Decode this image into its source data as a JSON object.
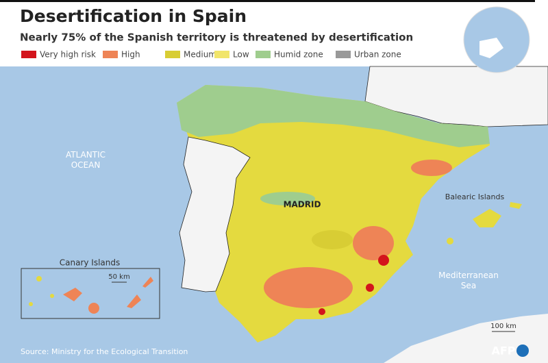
{
  "header": {
    "title": "Desertification in Spain",
    "subtitle": "Nearly 75% of the Spanish territory is threatened by desertification"
  },
  "legend": [
    {
      "label": "Very high risk",
      "color": "#d3141c"
    },
    {
      "label": "High",
      "color": "#ee8456"
    },
    {
      "label": "Medium",
      "color": "#d8cd34"
    },
    {
      "label": "Low",
      "color": "#f1e56b"
    },
    {
      "label": "Humid zone",
      "color": "#9fcd8e"
    },
    {
      "label": "Urban zone",
      "color": "#999999"
    }
  ],
  "map_labels": {
    "ocean": [
      "ATLANTIC",
      "OCEAN"
    ],
    "capital": "MADRID",
    "islands": "Balearic Islands",
    "sea": [
      "Mediterranean",
      "Sea"
    ],
    "canary": "Canary Islands",
    "canary_scale": "50 km",
    "main_scale": "100 km"
  },
  "footer": {
    "source": "Source: Ministry for the Ecological Transition",
    "logo": "AFP"
  }
}
